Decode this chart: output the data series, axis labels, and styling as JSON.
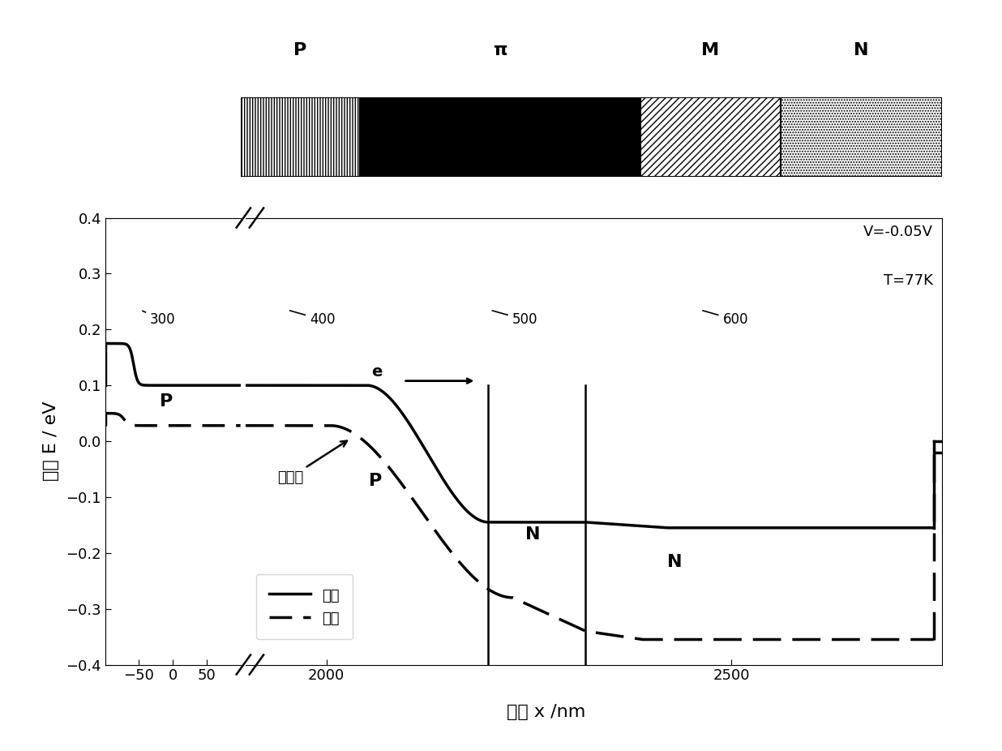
{
  "ylabel": "能带 E / eV",
  "xlabel": "位置 x /nm",
  "ylim": [
    -0.4,
    0.4
  ],
  "yticks": [
    -0.4,
    -0.3,
    -0.2,
    -0.1,
    0.0,
    0.1,
    0.2,
    0.3,
    0.4
  ],
  "xticks_left": [
    -50,
    0,
    50
  ],
  "xticks_right": [
    2000,
    2500
  ],
  "xlim_left": [
    -100,
    100
  ],
  "xlim_right": [
    1900,
    2760
  ],
  "annotation_voltage": "V=-0.05V",
  "annotation_temp": "T=77K",
  "legend_cb": "导带",
  "legend_vb": "价带",
  "inset_labels": [
    "P",
    "π",
    "M",
    "N"
  ],
  "inset_numbers": [
    "300",
    "400",
    "500",
    "600"
  ],
  "background_color": "#ffffff"
}
